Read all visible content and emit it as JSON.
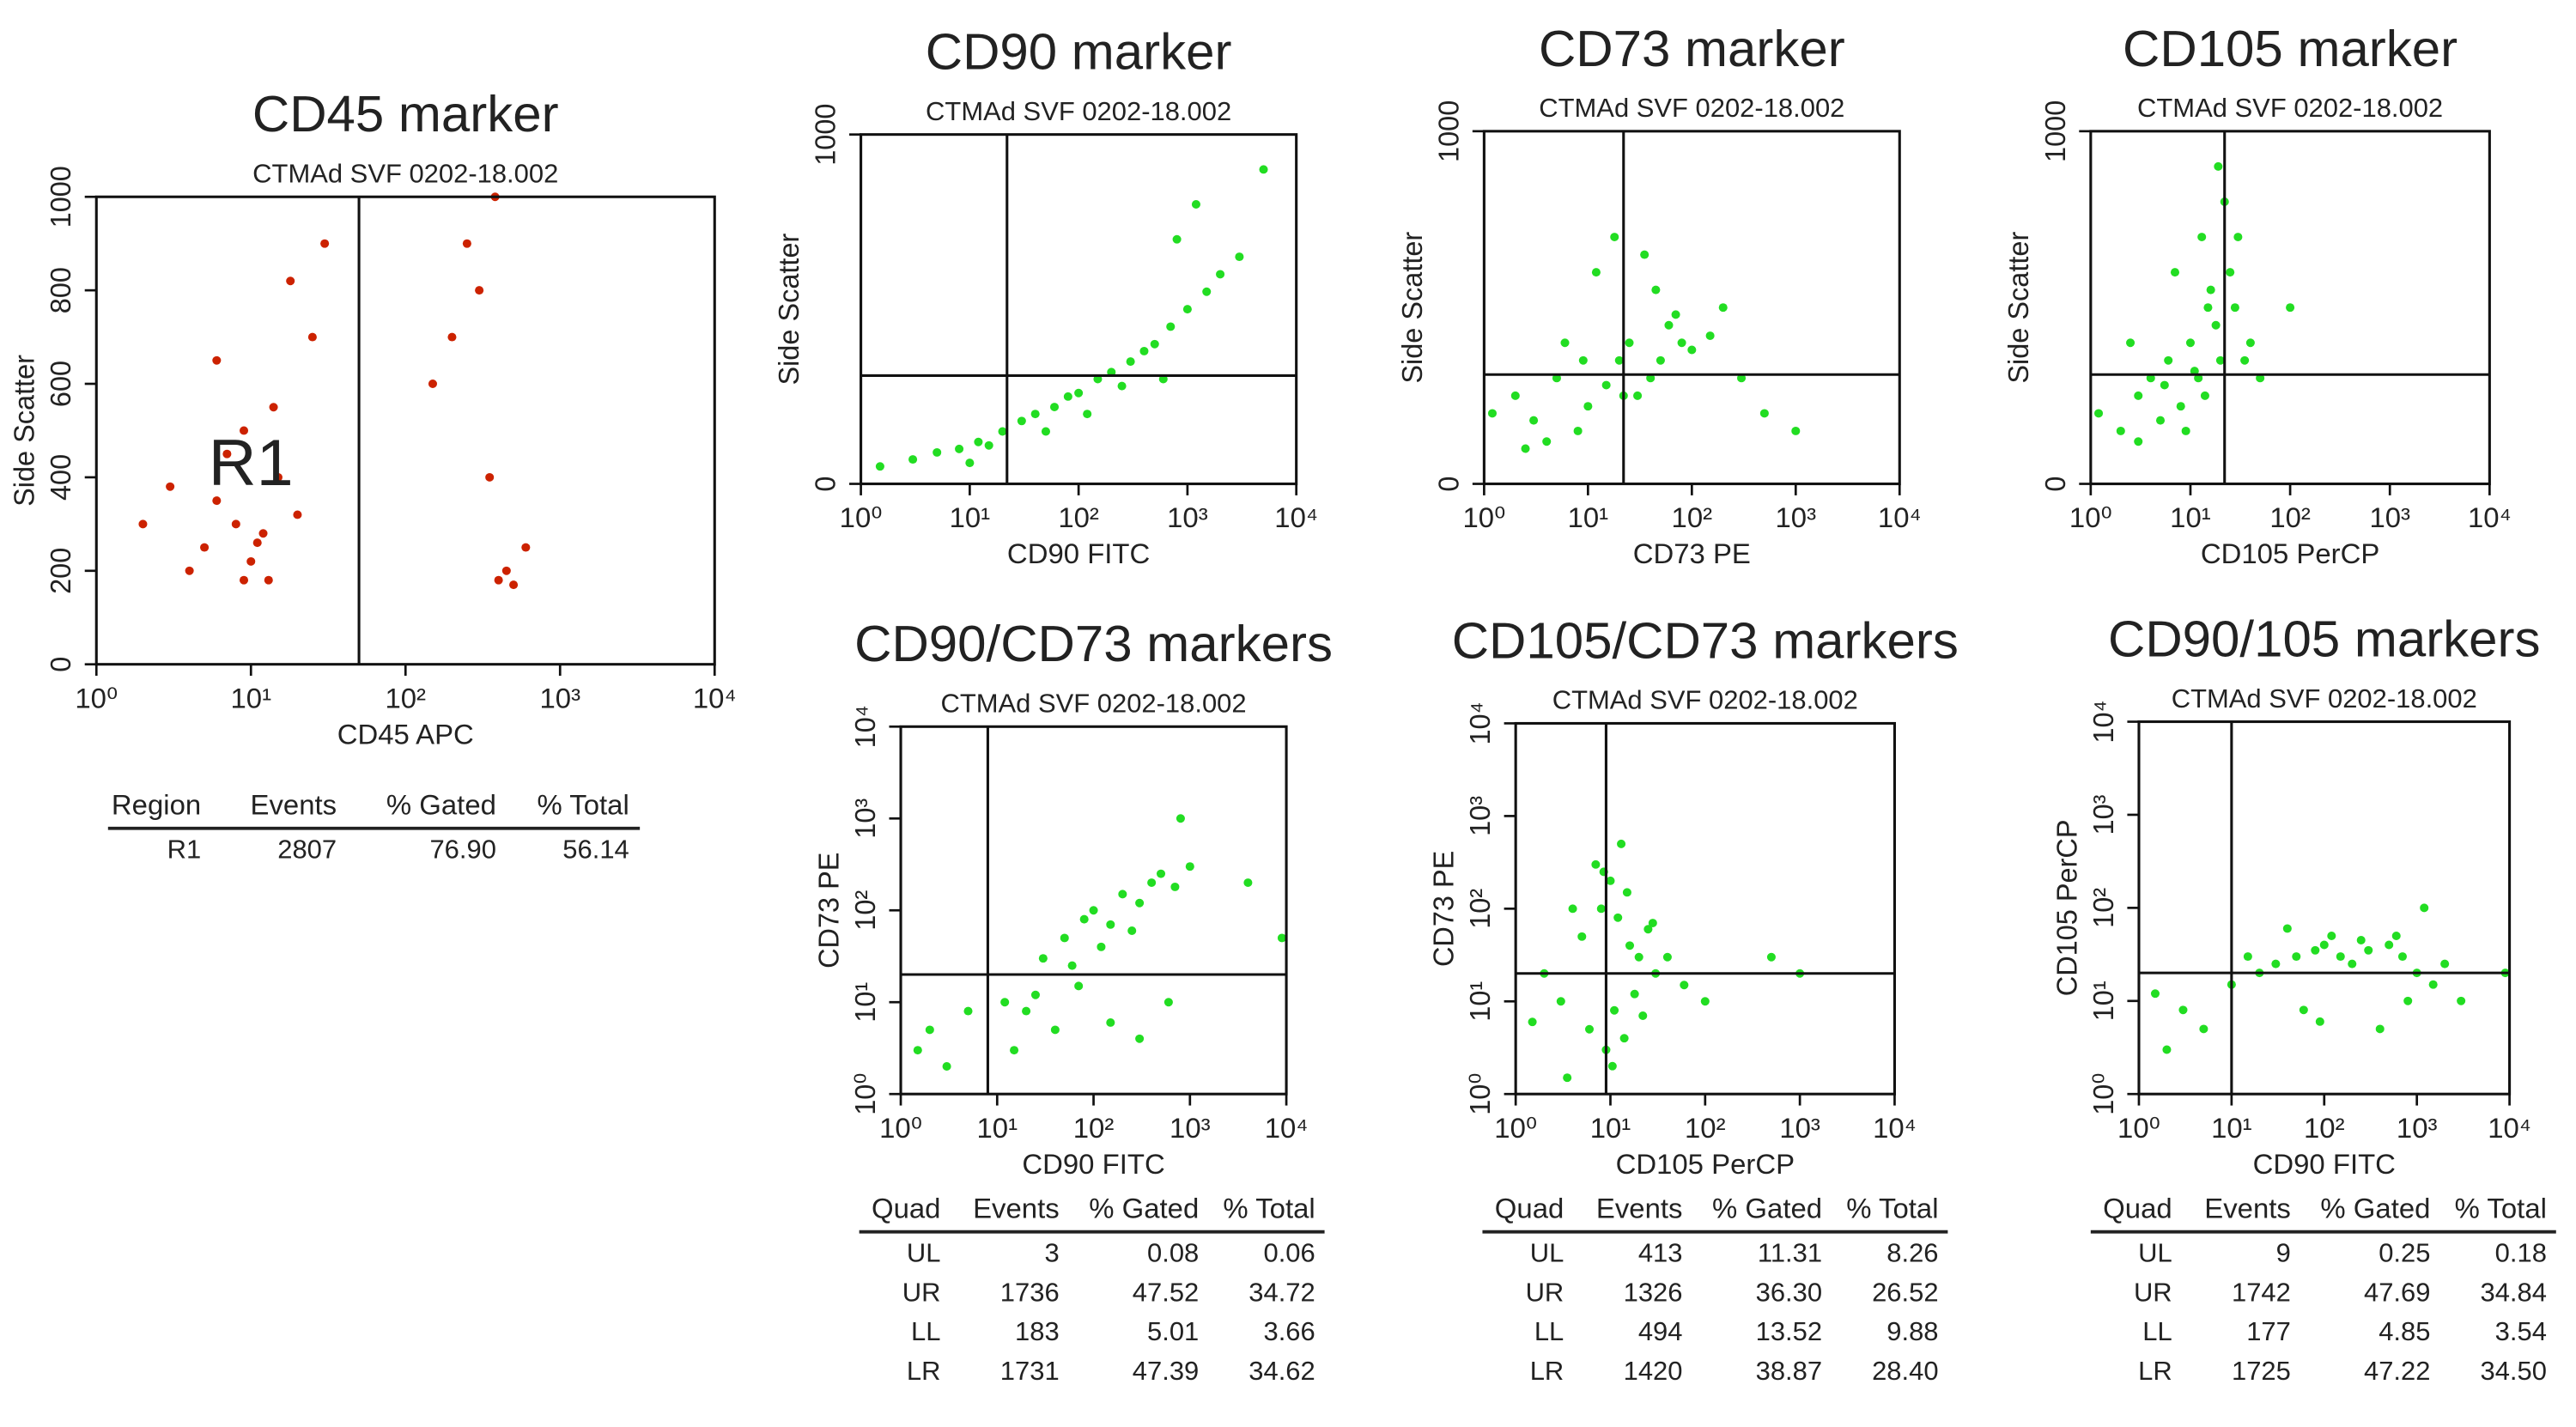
{
  "chart_data": [
    {
      "type": "scatter",
      "title": "CD45 marker",
      "subtitle": "CTMAd SVF 0202-18.002",
      "xlabel": "CD45 APC",
      "ylabel": "Side Scatter",
      "color": "#cc2200",
      "xlog": true,
      "ylog": false,
      "xlim": [
        1,
        10000
      ],
      "ylim": [
        0,
        1000
      ],
      "xticks": [
        {
          "value": 1,
          "label": "10⁰"
        },
        {
          "value": 10,
          "label": "10¹"
        },
        {
          "value": 100,
          "label": "10²"
        },
        {
          "value": 1000,
          "label": "10³"
        },
        {
          "value": 10000,
          "label": "10⁴"
        }
      ],
      "yticks": [
        0,
        200,
        400,
        600,
        800,
        1000
      ],
      "gates": {
        "x": 50
      },
      "annotation": {
        "text": "R1",
        "x": 10,
        "y": 420
      },
      "x": [
        5,
        8,
        10,
        12,
        6,
        15,
        9,
        7,
        20,
        4,
        11,
        3,
        14,
        25,
        18,
        6,
        30,
        9,
        13,
        2,
        150,
        300,
        400,
        500,
        350,
        250,
        600,
        450,
        200,
        380
      ],
      "y": [
        250,
        300,
        220,
        280,
        350,
        400,
        180,
        450,
        320,
        200,
        260,
        380,
        550,
        700,
        820,
        650,
        900,
        500,
        180,
        300,
        600,
        800,
        180,
        170,
        400,
        900,
        250,
        200,
        700,
        1000
      ],
      "table": {
        "columns": [
          "Region",
          "Events",
          "% Gated",
          "% Total"
        ],
        "rows": [
          [
            "R1",
            "2807",
            "76.90",
            "56.14"
          ]
        ]
      }
    },
    {
      "type": "scatter",
      "title": "CD90 marker",
      "subtitle": "CTMAd SVF 0202-18.002",
      "xlabel": "CD90 FITC",
      "ylabel": "Side Scatter",
      "color": "#22dd22",
      "xlog": true,
      "ylog": false,
      "xlim": [
        1,
        10000
      ],
      "ylim": [
        0,
        1000
      ],
      "xticks": [
        {
          "value": 1,
          "label": "10⁰"
        },
        {
          "value": 10,
          "label": "10¹"
        },
        {
          "value": 100,
          "label": "10²"
        },
        {
          "value": 1000,
          "label": "10³"
        },
        {
          "value": 10000,
          "label": "10⁴"
        }
      ],
      "yticks": [
        0,
        1000
      ],
      "gates": {
        "x": 22,
        "y": 310
      },
      "x": [
        1.5,
        3,
        5,
        8,
        12,
        15,
        20,
        30,
        40,
        60,
        80,
        100,
        150,
        200,
        300,
        400,
        500,
        700,
        1000,
        1500,
        2000,
        3000,
        50,
        120,
        250,
        600,
        800,
        1200,
        5000,
        10
      ],
      "y": [
        50,
        70,
        90,
        100,
        120,
        110,
        150,
        180,
        200,
        220,
        250,
        260,
        300,
        320,
        350,
        380,
        400,
        450,
        500,
        550,
        600,
        650,
        150,
        200,
        280,
        300,
        700,
        800,
        900,
        60
      ]
    },
    {
      "type": "scatter",
      "title": "CD73 marker",
      "subtitle": "CTMAd SVF 0202-18.002",
      "xlabel": "CD73 PE",
      "ylabel": "Side Scatter",
      "color": "#22dd22",
      "xlog": true,
      "ylog": false,
      "xlim": [
        1,
        10000
      ],
      "ylim": [
        0,
        1000
      ],
      "xticks": [
        {
          "value": 1,
          "label": "10⁰"
        },
        {
          "value": 10,
          "label": "10¹"
        },
        {
          "value": 100,
          "label": "10²"
        },
        {
          "value": 1000,
          "label": "10³"
        },
        {
          "value": 10000,
          "label": "10⁴"
        }
      ],
      "yticks": [
        0,
        1000
      ],
      "gates": {
        "x": 22,
        "y": 310
      },
      "x": [
        1.2,
        2,
        3,
        5,
        8,
        10,
        15,
        20,
        25,
        30,
        40,
        50,
        60,
        80,
        100,
        150,
        200,
        300,
        4,
        6,
        12,
        18,
        35,
        45,
        70,
        2.5,
        9,
        22,
        500,
        1000
      ],
      "y": [
        200,
        250,
        180,
        300,
        150,
        220,
        280,
        350,
        400,
        250,
        300,
        350,
        450,
        400,
        380,
        420,
        500,
        300,
        120,
        400,
        600,
        700,
        650,
        550,
        480,
        100,
        350,
        250,
        200,
        150
      ]
    },
    {
      "type": "scatter",
      "title": "CD105 marker",
      "subtitle": "CTMAd SVF 0202-18.002",
      "xlabel": "CD105 PerCP",
      "ylabel": "Side Scatter",
      "color": "#22dd22",
      "xlog": true,
      "ylog": false,
      "xlim": [
        1,
        10000
      ],
      "ylim": [
        0,
        1000
      ],
      "xticks": [
        {
          "value": 1,
          "label": "10⁰"
        },
        {
          "value": 10,
          "label": "10¹"
        },
        {
          "value": 100,
          "label": "10²"
        },
        {
          "value": 1000,
          "label": "10³"
        },
        {
          "value": 10000,
          "label": "10⁴"
        }
      ],
      "yticks": [
        0,
        1000
      ],
      "gates": {
        "x": 22,
        "y": 310
      },
      "x": [
        1.2,
        2,
        3,
        4,
        5,
        6,
        8,
        10,
        12,
        15,
        18,
        20,
        25,
        30,
        40,
        3,
        7,
        14,
        22,
        9,
        16,
        11,
        50,
        100,
        2.5,
        5.5,
        13,
        19,
        28,
        35
      ],
      "y": [
        200,
        150,
        250,
        300,
        180,
        350,
        220,
        400,
        300,
        500,
        450,
        350,
        600,
        700,
        400,
        120,
        600,
        250,
        800,
        150,
        550,
        320,
        300,
        500,
        400,
        280,
        700,
        900,
        500,
        350
      ]
    },
    {
      "type": "scatter",
      "title": "CD90/CD73 markers",
      "subtitle": "CTMAd SVF 0202-18.002",
      "xlabel": "CD90 FITC",
      "ylabel": "CD73 PE",
      "color": "#22dd22",
      "xlog": true,
      "ylog": true,
      "xlim": [
        1,
        10000
      ],
      "ylim": [
        1,
        10000
      ],
      "xticks": [
        {
          "value": 1,
          "label": "10⁰"
        },
        {
          "value": 10,
          "label": "10¹"
        },
        {
          "value": 100,
          "label": "10²"
        },
        {
          "value": 1000,
          "label": "10³"
        },
        {
          "value": 10000,
          "label": "10⁴"
        }
      ],
      "yticks": [
        {
          "value": 1,
          "label": "10⁰"
        },
        {
          "value": 10,
          "label": "10¹"
        },
        {
          "value": 100,
          "label": "10²"
        },
        {
          "value": 1000,
          "label": "10³"
        },
        {
          "value": 10000,
          "label": "10⁴"
        }
      ],
      "gates": {
        "x": 8,
        "y": 20
      },
      "x": [
        30,
        50,
        80,
        100,
        150,
        200,
        300,
        400,
        500,
        700,
        1000,
        60,
        120,
        250,
        20,
        40,
        15,
        12,
        25,
        70,
        150,
        300,
        600,
        2,
        3,
        5,
        1.5,
        9000,
        4000,
        800
      ],
      "y": [
        30,
        50,
        80,
        100,
        70,
        150,
        120,
        200,
        250,
        180,
        300,
        25,
        40,
        60,
        8,
        5,
        3,
        10,
        12,
        15,
        6,
        4,
        10,
        5,
        2,
        8,
        3,
        50,
        200,
        1000
      ],
      "table": {
        "columns": [
          "Quad",
          "Events",
          "% Gated",
          "% Total"
        ],
        "rows": [
          [
            "UL",
            "3",
            "0.08",
            "0.06"
          ],
          [
            "UR",
            "1736",
            "47.52",
            "34.72"
          ],
          [
            "LL",
            "183",
            "5.01",
            "3.66"
          ],
          [
            "LR",
            "1731",
            "47.39",
            "34.62"
          ]
        ]
      }
    },
    {
      "type": "scatter",
      "title": "CD105/CD73 markers",
      "subtitle": "CTMAd SVF 0202-18.002",
      "xlabel": "CD105 PerCP",
      "ylabel": "CD73 PE",
      "color": "#22dd22",
      "xlog": true,
      "ylog": true,
      "xlim": [
        1,
        10000
      ],
      "ylim": [
        1,
        10000
      ],
      "xticks": [
        {
          "value": 1,
          "label": "10⁰"
        },
        {
          "value": 10,
          "label": "10¹"
        },
        {
          "value": 100,
          "label": "10²"
        },
        {
          "value": 1000,
          "label": "10³"
        },
        {
          "value": 10000,
          "label": "10⁴"
        }
      ],
      "yticks": [
        {
          "value": 1,
          "label": "10⁰"
        },
        {
          "value": 10,
          "label": "10¹"
        },
        {
          "value": 100,
          "label": "10²"
        },
        {
          "value": 1000,
          "label": "10³"
        },
        {
          "value": 10000,
          "label": "10⁴"
        }
      ],
      "gates": {
        "x": 9,
        "y": 20
      },
      "x": [
        3,
        5,
        8,
        10,
        12,
        15,
        20,
        25,
        30,
        6,
        9,
        11,
        14,
        18,
        4,
        7,
        2,
        1.5,
        40,
        60,
        100,
        13,
        16,
        8.5,
        10.5,
        22,
        28,
        500,
        1000,
        3.5
      ],
      "y": [
        10,
        50,
        100,
        200,
        80,
        150,
        30,
        60,
        20,
        5,
        3,
        8,
        4,
        12,
        100,
        300,
        20,
        6,
        30,
        15,
        10,
        500,
        40,
        250,
        2,
        7,
        70,
        30,
        20,
        1.5
      ],
      "table": {
        "columns": [
          "Quad",
          "Events",
          "% Gated",
          "% Total"
        ],
        "rows": [
          [
            "UL",
            "413",
            "11.31",
            "8.26"
          ],
          [
            "UR",
            "1326",
            "36.30",
            "26.52"
          ],
          [
            "LL",
            "494",
            "13.52",
            "9.88"
          ],
          [
            "LR",
            "1420",
            "38.87",
            "28.40"
          ]
        ]
      }
    },
    {
      "type": "scatter",
      "title": "CD90/105 markers",
      "subtitle": "CTMAd SVF 0202-18.002",
      "xlabel": "CD90 FITC",
      "ylabel": "CD105 PerCP",
      "color": "#22dd22",
      "xlog": true,
      "ylog": true,
      "xlim": [
        1,
        10000
      ],
      "ylim": [
        1,
        10000
      ],
      "xticks": [
        {
          "value": 1,
          "label": "10⁰"
        },
        {
          "value": 10,
          "label": "10¹"
        },
        {
          "value": 100,
          "label": "10²"
        },
        {
          "value": 1000,
          "label": "10³"
        },
        {
          "value": 10000,
          "label": "10⁴"
        }
      ],
      "yticks": [
        {
          "value": 1,
          "label": "10⁰"
        },
        {
          "value": 10,
          "label": "10¹"
        },
        {
          "value": 100,
          "label": "10²"
        },
        {
          "value": 1000,
          "label": "10³"
        },
        {
          "value": 10000,
          "label": "10⁴"
        }
      ],
      "gates": {
        "x": 10,
        "y": 20
      },
      "x": [
        10,
        20,
        30,
        50,
        80,
        100,
        150,
        200,
        300,
        500,
        700,
        1000,
        1500,
        2000,
        3000,
        5,
        3,
        2,
        1.5,
        40,
        120,
        250,
        600,
        800,
        60,
        90,
        400,
        9000,
        1200,
        15
      ],
      "y": [
        15,
        20,
        25,
        30,
        35,
        40,
        30,
        25,
        35,
        40,
        30,
        20,
        15,
        25,
        10,
        5,
        8,
        3,
        12,
        60,
        50,
        45,
        50,
        10,
        8,
        6,
        5,
        20,
        100,
        30
      ],
      "table": {
        "columns": [
          "Quad",
          "Events",
          "% Gated",
          "% Total"
        ],
        "rows": [
          [
            "UL",
            "9",
            "0.25",
            "0.18"
          ],
          [
            "UR",
            "1742",
            "47.69",
            "34.84"
          ],
          [
            "LL",
            "177",
            "4.85",
            "3.54"
          ],
          [
            "LR",
            "1725",
            "47.22",
            "34.50"
          ]
        ]
      }
    }
  ]
}
